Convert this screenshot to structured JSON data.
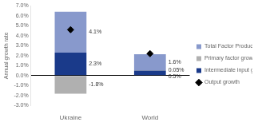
{
  "chart_data": {
    "type": "bar",
    "stacked": true,
    "categories": [
      "Ukraine",
      "World"
    ],
    "series": [
      {
        "name": "Intermediate input growth",
        "color": "#1a3a8a",
        "values": [
          2.3,
          0.5
        ],
        "data_labels": true,
        "value_labels": [
          "2.3%",
          "0.5%"
        ]
      },
      {
        "name": "Primary factor growth",
        "color": "#b0b0b0",
        "values": [
          -1.8,
          0.05
        ],
        "data_labels": true,
        "value_labels": [
          "-1.8%",
          "0.05%"
        ]
      },
      {
        "name": "Total Factor Productivity",
        "color": "#8899cc",
        "values": [
          4.1,
          1.6
        ],
        "data_labels": true,
        "value_labels": [
          "4.1%",
          "1.6%"
        ]
      },
      {
        "name": "Output growth",
        "type": "scatter",
        "color": "#000000",
        "marker": "diamond",
        "values": [
          4.6,
          2.2
        ]
      }
    ],
    "ylabel": "Annual growth rate",
    "ylim": [
      -3.0,
      7.0
    ],
    "yticks": [
      {
        "value": -3.0,
        "label": "-3.0%"
      },
      {
        "value": -2.0,
        "label": "-2.0%"
      },
      {
        "value": -1.0,
        "label": "-1.0%"
      },
      {
        "value": 0.0,
        "label": "0.0%"
      },
      {
        "value": 1.0,
        "label": "1.0%"
      },
      {
        "value": 2.0,
        "label": "2.0%"
      },
      {
        "value": 3.0,
        "label": "3.0%"
      },
      {
        "value": 4.0,
        "label": "4.0%"
      },
      {
        "value": 5.0,
        "label": "5.0%"
      },
      {
        "value": 6.0,
        "label": "6.0%"
      },
      {
        "value": 7.0,
        "label": "7.0%"
      }
    ],
    "grid": false,
    "legend": "right"
  }
}
